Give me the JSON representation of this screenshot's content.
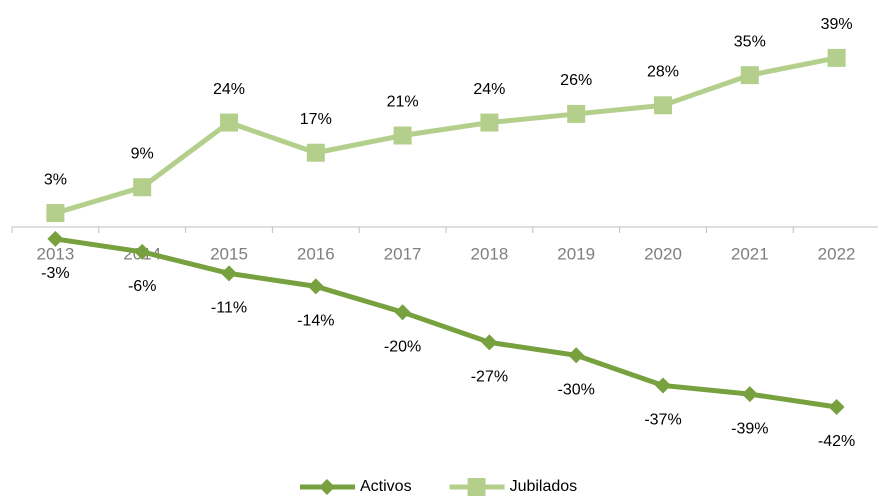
{
  "chart_data": {
    "type": "line",
    "categories": [
      "2013",
      "2014",
      "2015",
      "2016",
      "2017",
      "2018",
      "2019",
      "2020",
      "2021",
      "2022"
    ],
    "series": [
      {
        "name": "Activos",
        "color": "#77a13f",
        "marker": "diamond",
        "values": [
          -3,
          -6,
          -11,
          -14,
          -20,
          -27,
          -30,
          -37,
          -39,
          -42
        ],
        "value_labels": [
          "-3%",
          "-6%",
          "-11%",
          "-14%",
          "-20%",
          "-27%",
          "-30%",
          "-37%",
          "-39%",
          "-42%"
        ]
      },
      {
        "name": "Jubilados",
        "color": "#b4cf8c",
        "marker": "square",
        "values": [
          3,
          9,
          24,
          17,
          21,
          24,
          26,
          28,
          35,
          39
        ],
        "value_labels": [
          "3%",
          "9%",
          "24%",
          "17%",
          "21%",
          "24%",
          "26%",
          "28%",
          "35%",
          "39%"
        ]
      }
    ],
    "legend": "bottom"
  }
}
